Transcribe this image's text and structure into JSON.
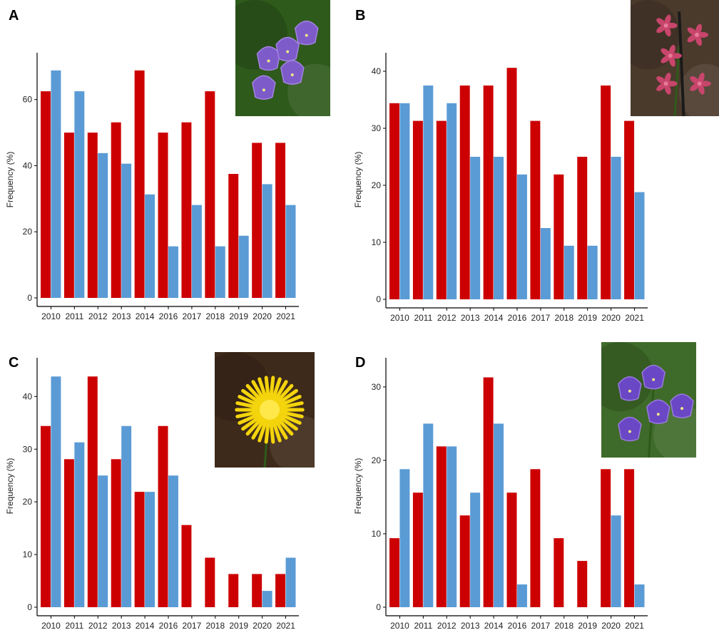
{
  "colors": {
    "series_a": "#cc0000",
    "series_b": "#5b9bd5"
  },
  "chart_data": [
    {
      "panel": "A",
      "type": "bar",
      "ylabel": "Frequency (%)",
      "categories": [
        "2010",
        "2011",
        "2012",
        "2013",
        "2014",
        "2016",
        "2017",
        "2018",
        "2019",
        "2020",
        "2021"
      ],
      "series": [
        {
          "values": [
            62.5,
            50,
            50,
            53.1,
            68.8,
            50,
            53.1,
            62.5,
            37.5,
            46.9,
            46.9
          ]
        },
        {
          "values": [
            68.8,
            62.5,
            43.8,
            40.6,
            31.3,
            15.6,
            28.1,
            15.6,
            18.8,
            34.4,
            28.1
          ]
        }
      ],
      "yticks": [
        0,
        20,
        40,
        60
      ],
      "ylim": [
        0,
        72
      ],
      "photo": {
        "icon": "bellflower-purple-photo-icon",
        "colors": [
          "#2e5a1c",
          "#7d5bc9",
          "#a384e0"
        ]
      }
    },
    {
      "panel": "B",
      "type": "bar",
      "ylabel": "Frequency (%)",
      "categories": [
        "2010",
        "2011",
        "2012",
        "2013",
        "2014",
        "2016",
        "2017",
        "2018",
        "2019",
        "2020",
        "2021"
      ],
      "series": [
        {
          "values": [
            34.4,
            31.3,
            31.3,
            37.5,
            37.5,
            40.6,
            31.3,
            21.9,
            25,
            37.5,
            31.3
          ]
        },
        {
          "values": [
            34.4,
            37.5,
            34.4,
            25,
            25,
            21.9,
            12.5,
            9.4,
            9.4,
            25,
            18.8
          ]
        }
      ],
      "yticks": [
        0,
        10,
        20,
        30,
        40
      ],
      "ylim": [
        0,
        42
      ],
      "photo": {
        "icon": "pink-campion-photo-icon",
        "colors": [
          "#4a3a2c",
          "#c8456b",
          "#e87a9a"
        ]
      }
    },
    {
      "panel": "C",
      "type": "bar",
      "ylabel": "Frequency (%)",
      "categories": [
        "2010",
        "2011",
        "2012",
        "2013",
        "2014",
        "2016",
        "2017",
        "2018",
        "2019",
        "2020",
        "2021"
      ],
      "series": [
        {
          "values": [
            34.4,
            28.1,
            43.8,
            28.1,
            21.9,
            34.4,
            15.6,
            9.4,
            6.3,
            6.3,
            6.3
          ]
        },
        {
          "values": [
            43.8,
            31.3,
            25,
            34.4,
            21.9,
            25,
            0,
            0,
            0,
            3.1,
            9.4
          ]
        }
      ],
      "yticks": [
        0,
        10,
        20,
        30,
        40
      ],
      "ylim": [
        0,
        46
      ],
      "photo": {
        "icon": "yellow-hawkweed-photo-icon",
        "colors": [
          "#3e2a1a",
          "#f4d40c",
          "#ffe84a"
        ]
      }
    },
    {
      "panel": "D",
      "type": "bar",
      "ylabel": "Frequency (%)",
      "categories": [
        "2010",
        "2011",
        "2012",
        "2013",
        "2014",
        "2016",
        "2017",
        "2018",
        "2019",
        "2020",
        "2021"
      ],
      "series": [
        {
          "values": [
            9.4,
            15.6,
            21.9,
            12.5,
            31.3,
            15.6,
            18.8,
            9.4,
            6.3,
            18.8,
            18.8
          ]
        },
        {
          "values": [
            18.8,
            25,
            21.9,
            15.6,
            25,
            3.1,
            0,
            0,
            0,
            12.5,
            3.1
          ]
        }
      ],
      "yticks": [
        0,
        10,
        20,
        30
      ],
      "ylim": [
        0,
        33
      ],
      "photo": {
        "icon": "clustered-bellflower-photo-icon",
        "colors": [
          "#3f6b2a",
          "#6a47c4",
          "#9a7ae0"
        ]
      }
    }
  ]
}
